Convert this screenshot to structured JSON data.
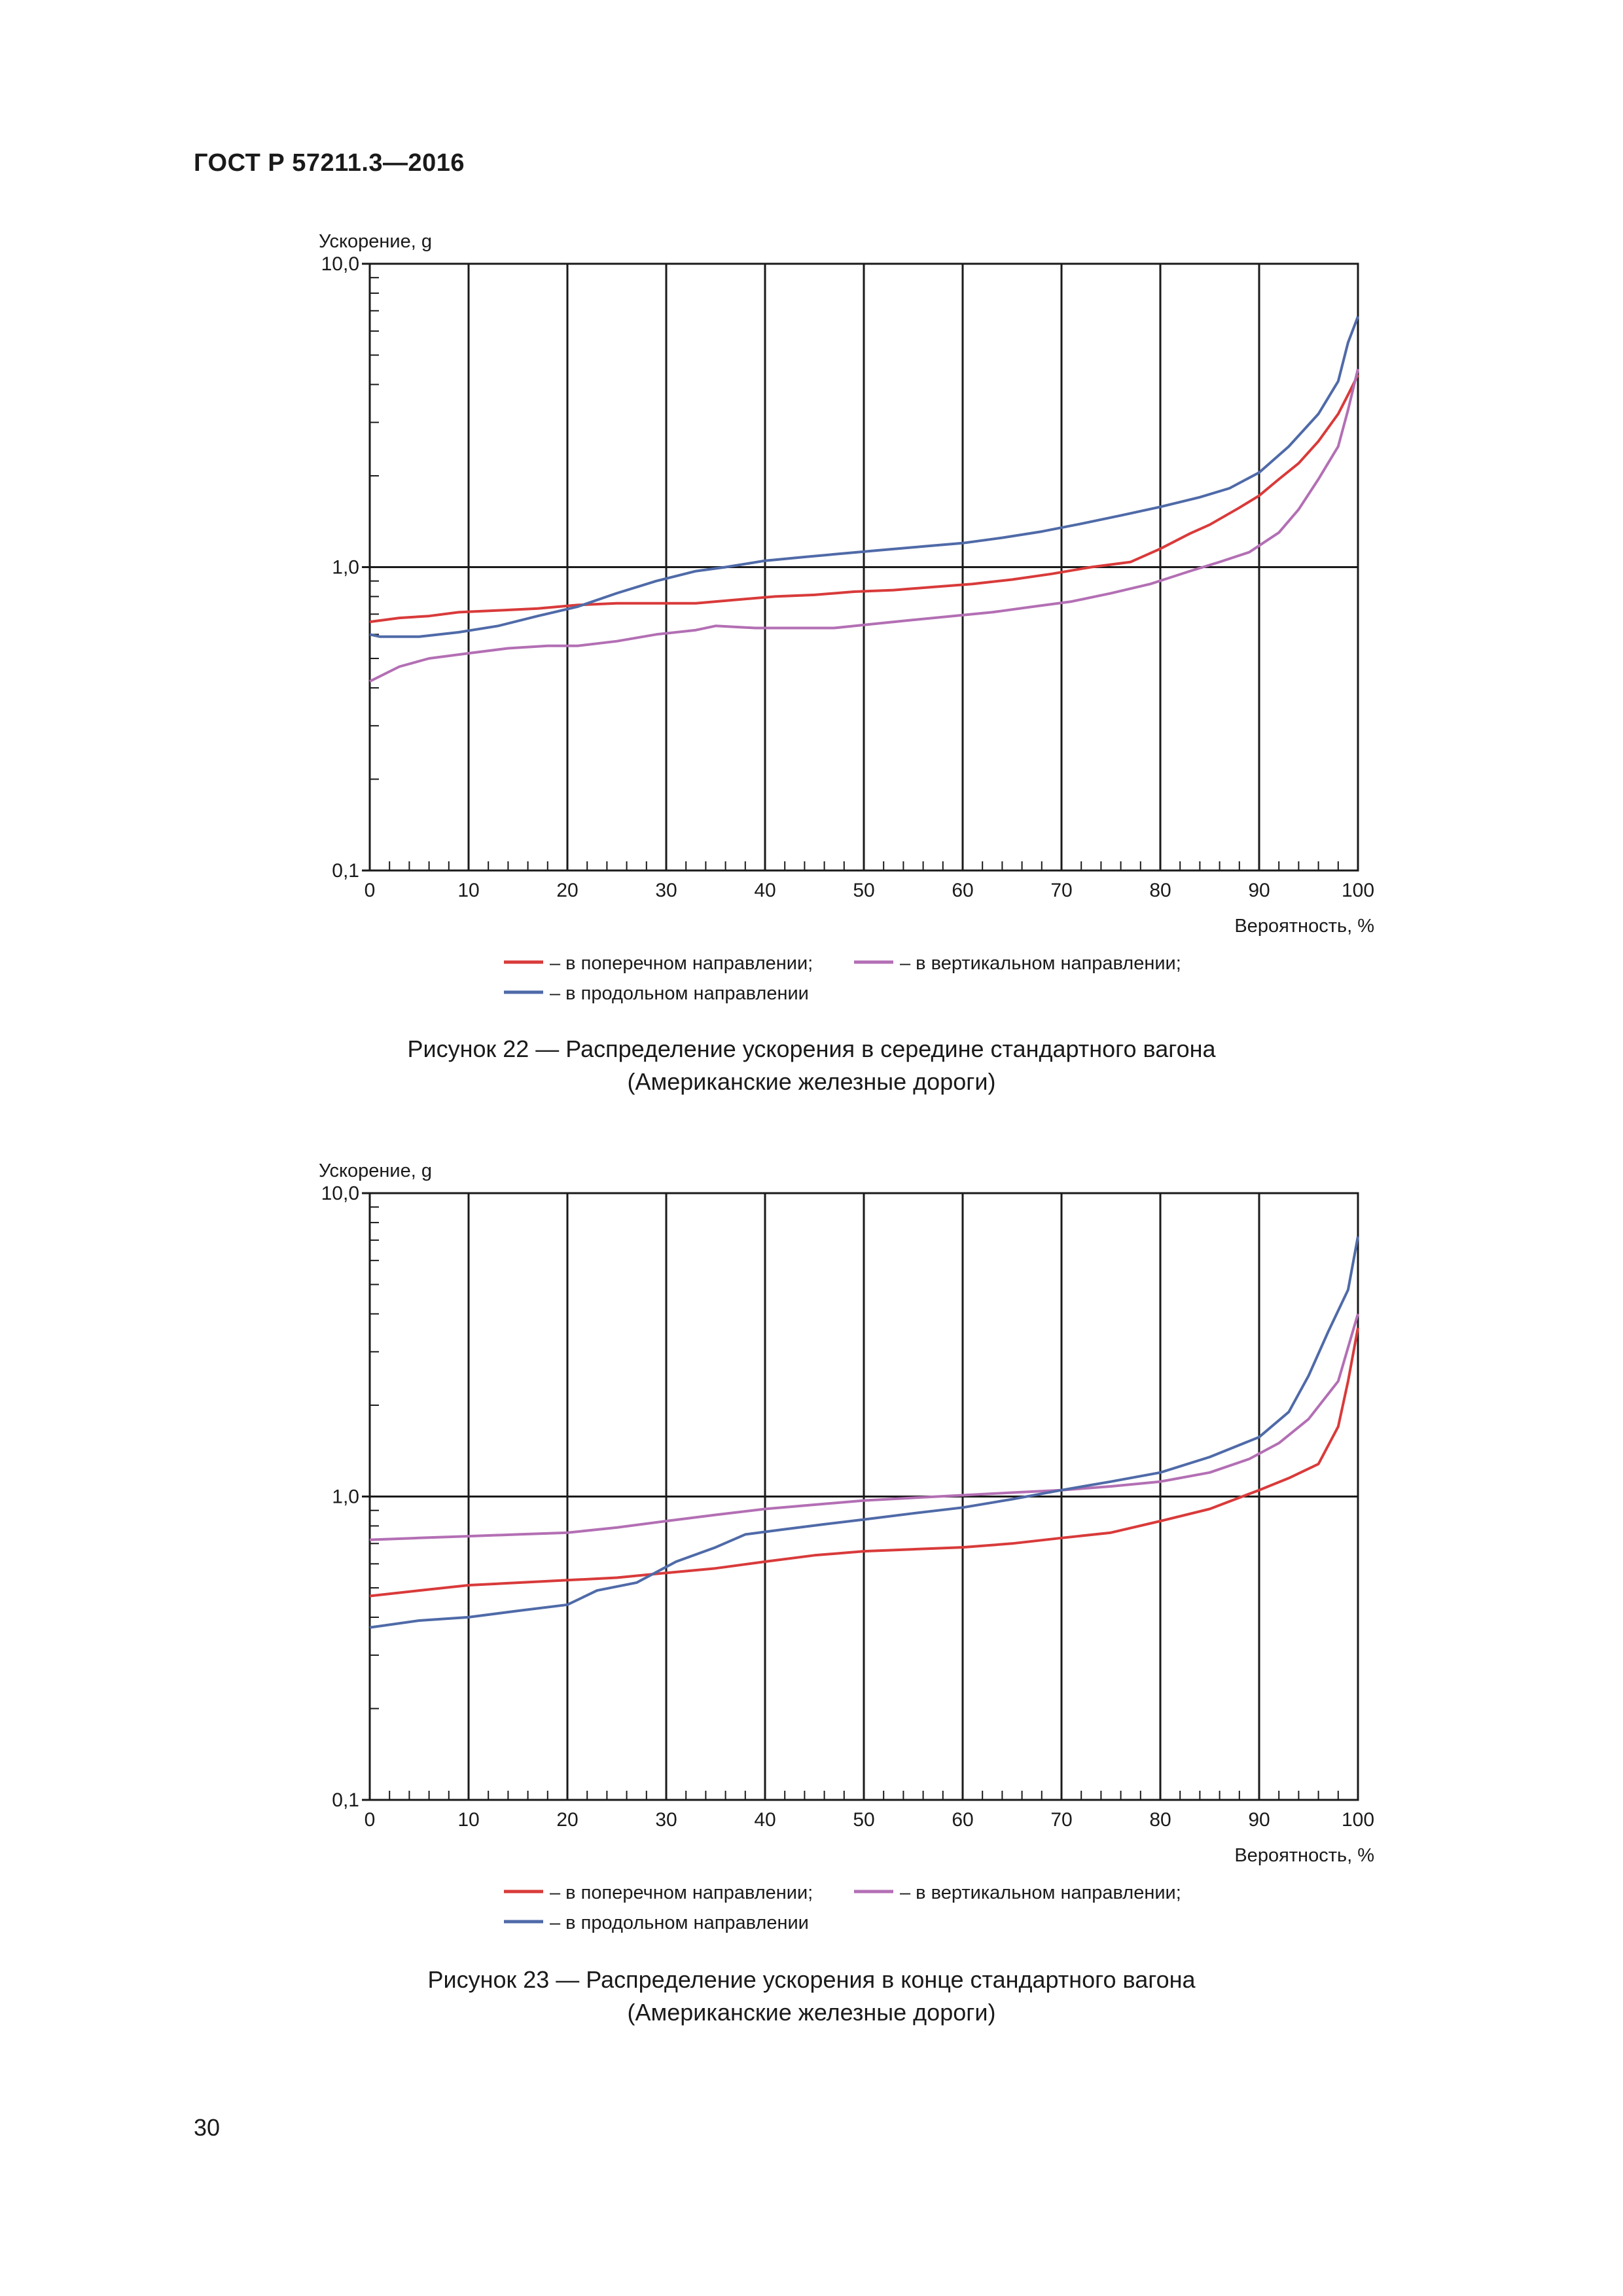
{
  "document": {
    "header": "ГОСТ Р 57211.3—2016",
    "page_number": "30"
  },
  "colors": {
    "transverse": "#d93a3a",
    "vertical": "#b36fb4",
    "longitudinal": "#4f6aa8"
  },
  "figures": [
    {
      "caption_line1": "Рисунок 22 — Распределение ускорения в середине стандартного вагона",
      "caption_line2": "(Американские железные дороги)"
    },
    {
      "caption_line1": "Рисунок 23 — Распределение ускорения в конце стандартного вагона",
      "caption_line2": "(Американские железные дороги)"
    }
  ],
  "chart_data": [
    {
      "type": "line",
      "title": "",
      "ylabel": "Ускорение, g",
      "xlabel": "Вероятность, %",
      "yscale": "log",
      "ylim": [
        0.1,
        10.0
      ],
      "xlim": [
        0,
        100
      ],
      "ytick_labels": [
        "10,0",
        "1,0",
        "0,1"
      ],
      "xtick_labels": [
        "0",
        "10",
        "20",
        "30",
        "40",
        "50",
        "60",
        "70",
        "80",
        "90",
        "100"
      ],
      "legend": [
        {
          "key": "transverse",
          "label": "– в поперечном направлении;"
        },
        {
          "key": "vertical",
          "label": "– в вертикальном направлении;"
        },
        {
          "key": "longitudinal",
          "label": "– в продольном направлении"
        }
      ],
      "series": [
        {
          "name": "в поперечном направлении",
          "key": "transverse",
          "x": [
            0,
            3,
            6,
            9,
            13,
            17,
            21,
            25,
            29,
            33,
            37,
            41,
            45,
            49,
            53,
            57,
            61,
            65,
            69,
            73,
            77,
            80,
            83,
            85,
            88,
            90,
            92,
            94,
            96,
            98,
            99,
            100
          ],
          "y": [
            0.66,
            0.68,
            0.69,
            0.71,
            0.72,
            0.73,
            0.75,
            0.76,
            0.76,
            0.76,
            0.78,
            0.8,
            0.81,
            0.83,
            0.84,
            0.86,
            0.88,
            0.91,
            0.95,
            1.0,
            1.04,
            1.15,
            1.29,
            1.38,
            1.57,
            1.72,
            1.95,
            2.2,
            2.6,
            3.2,
            3.7,
            4.3
          ]
        },
        {
          "name": "в вертикальном направлении",
          "key": "vertical",
          "x": [
            0,
            3,
            6,
            10,
            14,
            18,
            21,
            25,
            29,
            33,
            35,
            39,
            43,
            47,
            51,
            55,
            59,
            63,
            67,
            71,
            75,
            79,
            83,
            86,
            89,
            92,
            94,
            96,
            98,
            99,
            100
          ],
          "y": [
            0.42,
            0.47,
            0.5,
            0.52,
            0.54,
            0.55,
            0.55,
            0.57,
            0.6,
            0.62,
            0.64,
            0.63,
            0.63,
            0.63,
            0.65,
            0.67,
            0.69,
            0.71,
            0.74,
            0.77,
            0.82,
            0.88,
            0.97,
            1.04,
            1.12,
            1.3,
            1.55,
            1.95,
            2.5,
            3.3,
            4.5
          ]
        },
        {
          "name": "в продольном направлении",
          "key": "longitudinal",
          "x": [
            0,
            1,
            5,
            9,
            13,
            17,
            21,
            25,
            29,
            33,
            36,
            40,
            44,
            48,
            52,
            56,
            60,
            64,
            68,
            72,
            76,
            80,
            84,
            87,
            90,
            93,
            96,
            98,
            99,
            100
          ],
          "y": [
            0.6,
            0.59,
            0.59,
            0.61,
            0.64,
            0.69,
            0.74,
            0.82,
            0.9,
            0.97,
            1.0,
            1.05,
            1.08,
            1.11,
            1.14,
            1.17,
            1.2,
            1.25,
            1.31,
            1.39,
            1.48,
            1.58,
            1.7,
            1.82,
            2.05,
            2.5,
            3.2,
            4.1,
            5.5,
            6.7
          ]
        }
      ]
    },
    {
      "type": "line",
      "title": "",
      "ylabel": "Ускорение, g",
      "xlabel": "Вероятность, %",
      "yscale": "log",
      "ylim": [
        0.1,
        10.0
      ],
      "xlim": [
        0,
        100
      ],
      "ytick_labels": [
        "10,0",
        "1,0",
        "0,1"
      ],
      "xtick_labels": [
        "0",
        "10",
        "20",
        "30",
        "40",
        "50",
        "60",
        "70",
        "80",
        "90",
        "100"
      ],
      "legend": [
        {
          "key": "transverse",
          "label": "– в поперечном направлении;"
        },
        {
          "key": "vertical",
          "label": "– в вертикальном направлении;"
        },
        {
          "key": "longitudinal",
          "label": "– в продольном направлении"
        }
      ],
      "series": [
        {
          "name": "в поперечном направлении",
          "key": "transverse",
          "x": [
            0,
            5,
            10,
            15,
            20,
            25,
            30,
            35,
            40,
            45,
            50,
            55,
            60,
            65,
            70,
            75,
            80,
            85,
            90,
            93,
            96,
            98,
            99,
            100
          ],
          "y": [
            0.47,
            0.49,
            0.51,
            0.52,
            0.53,
            0.54,
            0.56,
            0.58,
            0.61,
            0.64,
            0.66,
            0.67,
            0.68,
            0.7,
            0.73,
            0.76,
            0.83,
            0.91,
            1.05,
            1.15,
            1.28,
            1.7,
            2.4,
            3.6
          ]
        },
        {
          "name": "в вертикальном направлении",
          "key": "vertical",
          "x": [
            0,
            5,
            10,
            15,
            20,
            25,
            30,
            35,
            40,
            45,
            50,
            55,
            60,
            65,
            70,
            75,
            80,
            85,
            89,
            92,
            95,
            98,
            100
          ],
          "y": [
            0.72,
            0.73,
            0.74,
            0.75,
            0.76,
            0.79,
            0.83,
            0.87,
            0.91,
            0.94,
            0.97,
            0.99,
            1.01,
            1.03,
            1.05,
            1.08,
            1.12,
            1.2,
            1.33,
            1.5,
            1.8,
            2.4,
            4.0
          ]
        },
        {
          "name": "в продольном направлении",
          "key": "longitudinal",
          "x": [
            0,
            5,
            10,
            15,
            20,
            23,
            27,
            31,
            35,
            38,
            42,
            46,
            50,
            55,
            60,
            65,
            70,
            75,
            80,
            85,
            90,
            93,
            95,
            97,
            99,
            100
          ],
          "y": [
            0.37,
            0.39,
            0.4,
            0.42,
            0.44,
            0.49,
            0.52,
            0.61,
            0.68,
            0.75,
            0.78,
            0.81,
            0.84,
            0.88,
            0.92,
            0.98,
            1.05,
            1.12,
            1.2,
            1.35,
            1.57,
            1.9,
            2.5,
            3.5,
            4.8,
            7.2
          ]
        }
      ]
    }
  ]
}
